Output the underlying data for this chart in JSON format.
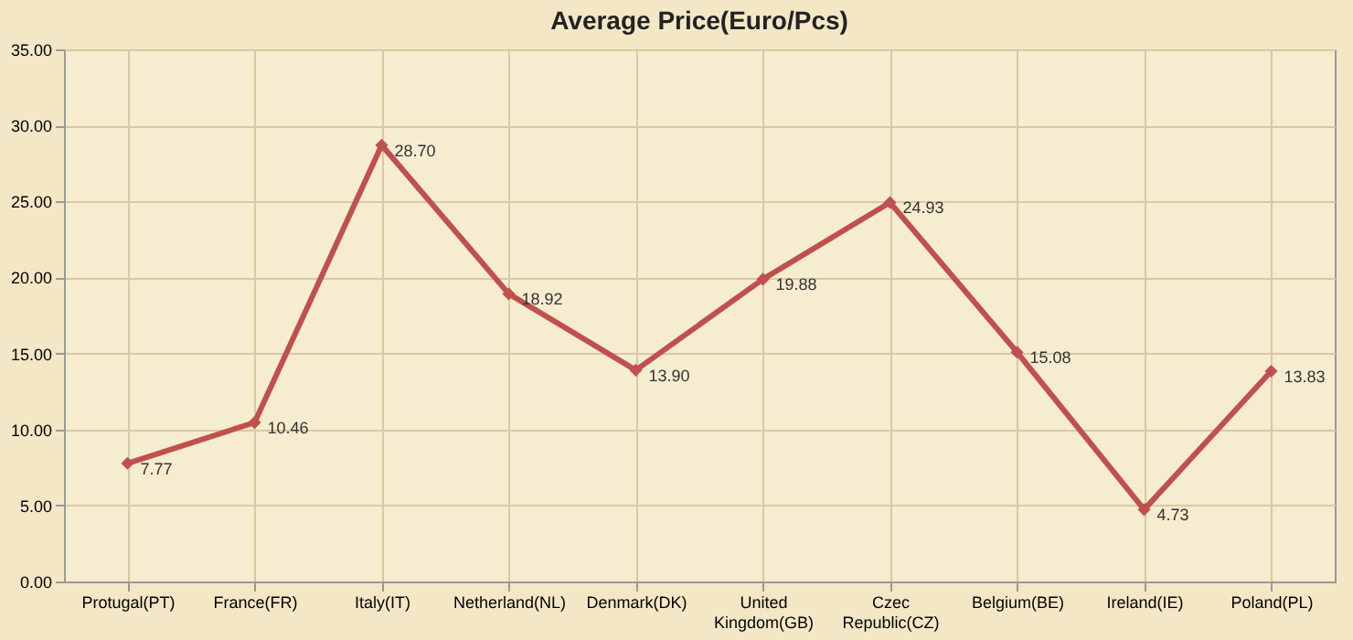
{
  "chart_data": {
    "type": "line",
    "title": "Average Price(Euro/Pcs)",
    "categories": [
      "Protugal(PT)",
      "France(FR)",
      "Italy(IT)",
      "Netherland(NL)",
      "Denmark(DK)",
      "United Kingdom(GB)",
      "Czec Republic(CZ)",
      "Belgium(BE)",
      "Ireland(IE)",
      "Poland(PL)"
    ],
    "series": [
      {
        "color": "#c0504d",
        "values": [
          7.77,
          10.46,
          28.7,
          18.92,
          13.9,
          19.88,
          24.93,
          15.08,
          4.73,
          13.83
        ],
        "value_labels": [
          "7.77",
          "10.46",
          "28.70",
          "18.92",
          "13.90",
          "19.88",
          "24.93",
          "15.08",
          "4.73",
          "13.83"
        ]
      }
    ],
    "ylim": [
      0,
      35
    ],
    "yticks": [
      {
        "value": 0,
        "label": "0.00"
      },
      {
        "value": 5,
        "label": "5.00"
      },
      {
        "value": 10,
        "label": "10.00"
      },
      {
        "value": 15,
        "label": "15.00"
      },
      {
        "value": 20,
        "label": "20.00"
      },
      {
        "value": 25,
        "label": "25.00"
      },
      {
        "value": 30,
        "label": "30.00"
      },
      {
        "value": 35,
        "label": "35.00"
      }
    ],
    "grid": true,
    "marker": "diamond",
    "line_style": "solid"
  }
}
